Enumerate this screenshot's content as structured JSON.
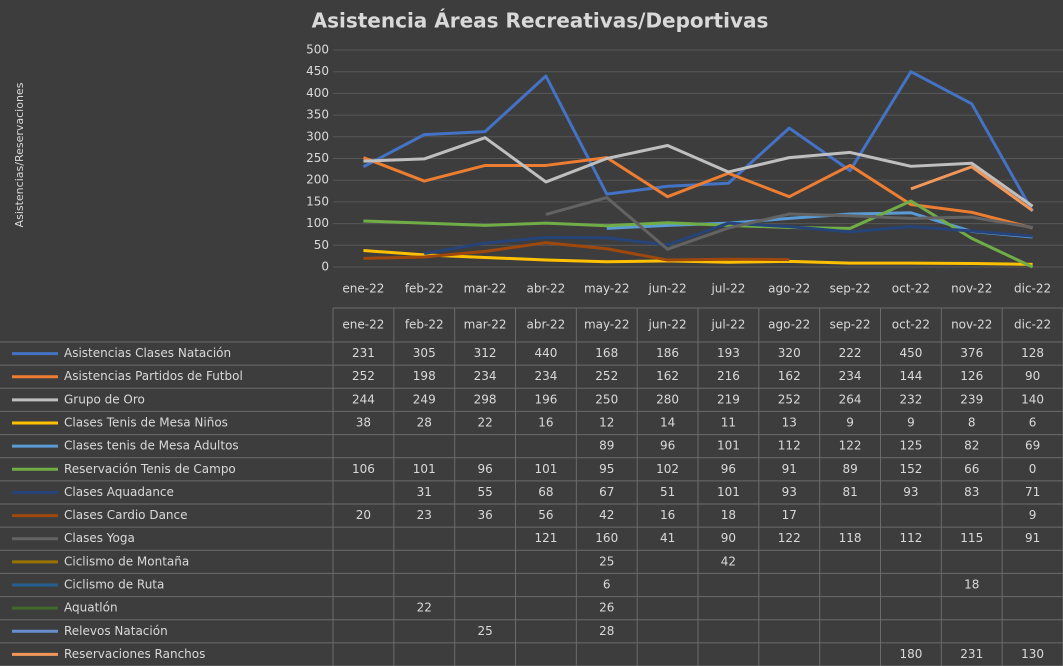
{
  "chart_data": {
    "type": "line",
    "title": "Asistencia Áreas Recreativas/Deportivas",
    "y_label": "Asistencias/Reservaciones",
    "categories": [
      "ene-22",
      "feb-22",
      "mar-22",
      "abr-22",
      "may-22",
      "jun-22",
      "jul-22",
      "ago-22",
      "sep-22",
      "oct-22",
      "nov-22",
      "dic-22"
    ],
    "ylim": [
      0,
      500
    ],
    "yticks": [
      0,
      50,
      100,
      150,
      200,
      250,
      300,
      350,
      400,
      450,
      500
    ],
    "grid": true,
    "series": [
      {
        "name": "Asistencias Clases Natación",
        "color": "#4472c4",
        "values": [
          231,
          305,
          312,
          440,
          168,
          186,
          193,
          320,
          222,
          450,
          376,
          128
        ]
      },
      {
        "name": "Asistencias Partidos de Futbol",
        "color": "#ed7d31",
        "values": [
          252,
          198,
          234,
          234,
          252,
          162,
          216,
          162,
          234,
          144,
          126,
          90
        ]
      },
      {
        "name": "Grupo de Oro",
        "color": "#bfbfbf",
        "values": [
          244,
          249,
          298,
          196,
          250,
          280,
          219,
          252,
          264,
          232,
          239,
          140
        ]
      },
      {
        "name": "Clases Tenis de Mesa Niños",
        "color": "#ffc000",
        "values": [
          38,
          28,
          22,
          16,
          12,
          14,
          11,
          13,
          9,
          9,
          8,
          6
        ]
      },
      {
        "name": "Clases tenis de Mesa Adultos",
        "color": "#5b9bd5",
        "values": [
          null,
          null,
          null,
          null,
          89,
          96,
          101,
          112,
          122,
          125,
          82,
          69
        ]
      },
      {
        "name": "Reservación Tenis de Campo",
        "color": "#70ad47",
        "values": [
          106,
          101,
          96,
          101,
          95,
          102,
          96,
          91,
          89,
          152,
          66,
          0
        ]
      },
      {
        "name": "Clases Aquadance",
        "color": "#264478",
        "values": [
          null,
          31,
          55,
          68,
          67,
          51,
          101,
          93,
          81,
          93,
          83,
          71
        ]
      },
      {
        "name": "Clases Cardio Dance",
        "color": "#9e480e",
        "values": [
          20,
          23,
          36,
          56,
          42,
          16,
          18,
          17,
          null,
          null,
          null,
          9
        ]
      },
      {
        "name": "Clases Yoga",
        "color": "#636363",
        "values": [
          null,
          null,
          null,
          121,
          160,
          41,
          90,
          122,
          118,
          112,
          115,
          91
        ]
      },
      {
        "name": "Ciclismo de Montaña",
        "color": "#997300",
        "values": [
          null,
          null,
          null,
          null,
          25,
          null,
          42,
          null,
          null,
          null,
          null,
          null
        ]
      },
      {
        "name": "Ciclismo de Ruta",
        "color": "#255e91",
        "values": [
          null,
          null,
          null,
          null,
          6,
          null,
          null,
          null,
          null,
          null,
          18,
          null
        ]
      },
      {
        "name": "Aquatlón",
        "color": "#43682b",
        "values": [
          null,
          22,
          null,
          null,
          26,
          null,
          null,
          null,
          null,
          null,
          null,
          null
        ]
      },
      {
        "name": "Relevos Natación",
        "color": "#698ed0",
        "values": [
          null,
          null,
          25,
          null,
          28,
          null,
          null,
          null,
          null,
          null,
          null,
          null
        ]
      },
      {
        "name": "Reservaciones Ranchos",
        "color": "#f1975a",
        "values": [
          null,
          null,
          null,
          null,
          null,
          null,
          null,
          null,
          null,
          180,
          231,
          130
        ]
      }
    ]
  }
}
